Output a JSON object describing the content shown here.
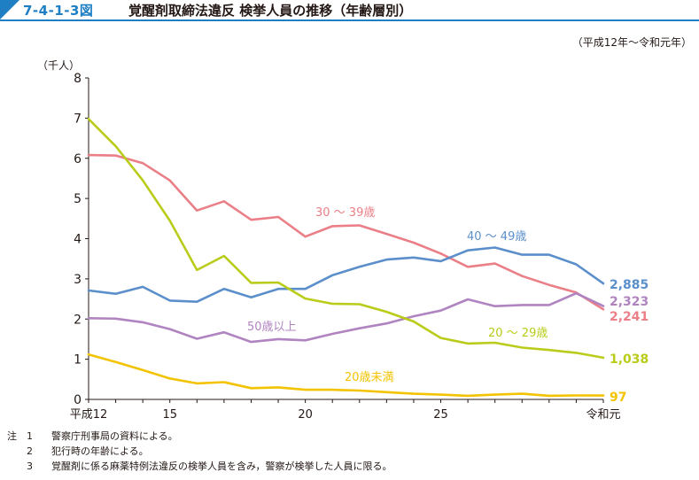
{
  "header": {
    "figure_number": "7-4-1-3図",
    "title": "覚醒剤取締法違反 検挙人員の推移（年齢層別）",
    "period": "（平成12年～令和元年）"
  },
  "notes": {
    "prefix": "注",
    "items": [
      {
        "num": "1",
        "text": "警察庁刑事局の資料による。"
      },
      {
        "num": "2",
        "text": "犯行時の年齢による。"
      },
      {
        "num": "3",
        "text": "覚醒剤に係る麻薬特例法違反の検挙人員を含み，警察が検挙した人員に限る。"
      }
    ]
  },
  "chart_data": {
    "type": "line",
    "ylabel": "（千人）",
    "ylim": [
      0,
      8
    ],
    "yticks": [
      0,
      1,
      2,
      3,
      4,
      5,
      6,
      7,
      8
    ],
    "x": [
      12,
      13,
      14,
      15,
      16,
      17,
      18,
      19,
      20,
      21,
      22,
      23,
      24,
      25,
      26,
      27,
      28,
      29,
      30,
      31
    ],
    "xlim": [
      12,
      31
    ],
    "xticks": [
      {
        "x": 12,
        "label": "平成12"
      },
      {
        "x": 15,
        "label": "15"
      },
      {
        "x": 20,
        "label": "20"
      },
      {
        "x": 25,
        "label": "25"
      },
      {
        "x": 31,
        "label": "令和元"
      }
    ],
    "series": [
      {
        "name": "30 ～ 39歳",
        "color": "#eb7f87",
        "values": [
          6.08,
          6.07,
          5.88,
          5.45,
          4.7,
          4.93,
          4.47,
          4.54,
          4.05,
          4.31,
          4.33,
          4.12,
          3.9,
          3.63,
          3.3,
          3.38,
          3.07,
          2.85,
          2.66,
          2.241
        ],
        "end_label": "2,241"
      },
      {
        "name": "40 ～ 49歳",
        "color": "#5b8fcb",
        "values": [
          2.71,
          2.63,
          2.8,
          2.46,
          2.43,
          2.75,
          2.54,
          2.75,
          2.75,
          3.09,
          3.3,
          3.48,
          3.53,
          3.44,
          3.71,
          3.78,
          3.6,
          3.6,
          3.36,
          2.885
        ],
        "end_label": "2,885"
      },
      {
        "name": "50歳以上",
        "color": "#b084c0",
        "values": [
          2.02,
          2.01,
          1.92,
          1.75,
          1.51,
          1.67,
          1.43,
          1.5,
          1.47,
          1.63,
          1.77,
          1.89,
          2.07,
          2.21,
          2.49,
          2.32,
          2.35,
          2.35,
          2.64,
          2.323
        ],
        "end_label": "2,323"
      },
      {
        "name": "20 ～ 29歳",
        "color": "#b9cc1a",
        "values": [
          6.98,
          6.3,
          5.45,
          4.45,
          3.22,
          3.57,
          2.9,
          2.91,
          2.51,
          2.38,
          2.37,
          2.18,
          1.94,
          1.53,
          1.39,
          1.41,
          1.29,
          1.23,
          1.16,
          1.038
        ],
        "end_label": "1,038"
      },
      {
        "name": "20歳未満",
        "color": "#f3c300",
        "values": [
          1.12,
          0.93,
          0.73,
          0.52,
          0.4,
          0.43,
          0.28,
          0.3,
          0.24,
          0.24,
          0.22,
          0.18,
          0.14,
          0.12,
          0.09,
          0.12,
          0.14,
          0.09,
          0.1,
          0.097
        ],
        "end_label": "97"
      }
    ]
  }
}
